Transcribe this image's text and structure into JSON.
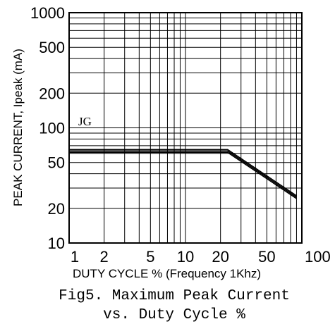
{
  "chart_data": {
    "type": "line",
    "xlabel": "DUTY CYCLE % (Frequency 1Khz)",
    "ylabel": "PEAK CURRENT, Ipeak (mA)",
    "x_scale": "log",
    "y_scale": "log",
    "xlim": [
      1,
      100
    ],
    "ylim": [
      10,
      1000
    ],
    "x_ticks": [
      1,
      2,
      5,
      10,
      20,
      50,
      100
    ],
    "x_tick_labels": [
      "1",
      "2",
      "5",
      "10",
      "20",
      "50",
      "100"
    ],
    "y_ticks": [
      10,
      20,
      50,
      100,
      200,
      500,
      1000
    ],
    "y_tick_labels": [
      "10",
      "20",
      "50",
      "100",
      "200",
      "500",
      "1000"
    ],
    "grid": true,
    "series": [
      {
        "name": "JG",
        "x": [
          1,
          23,
          90
        ],
        "y": [
          63,
          63,
          25
        ]
      }
    ],
    "caption_line1": "Fig5. Maximum Peak Current",
    "caption_line2": "vs. Duty Cycle %"
  }
}
